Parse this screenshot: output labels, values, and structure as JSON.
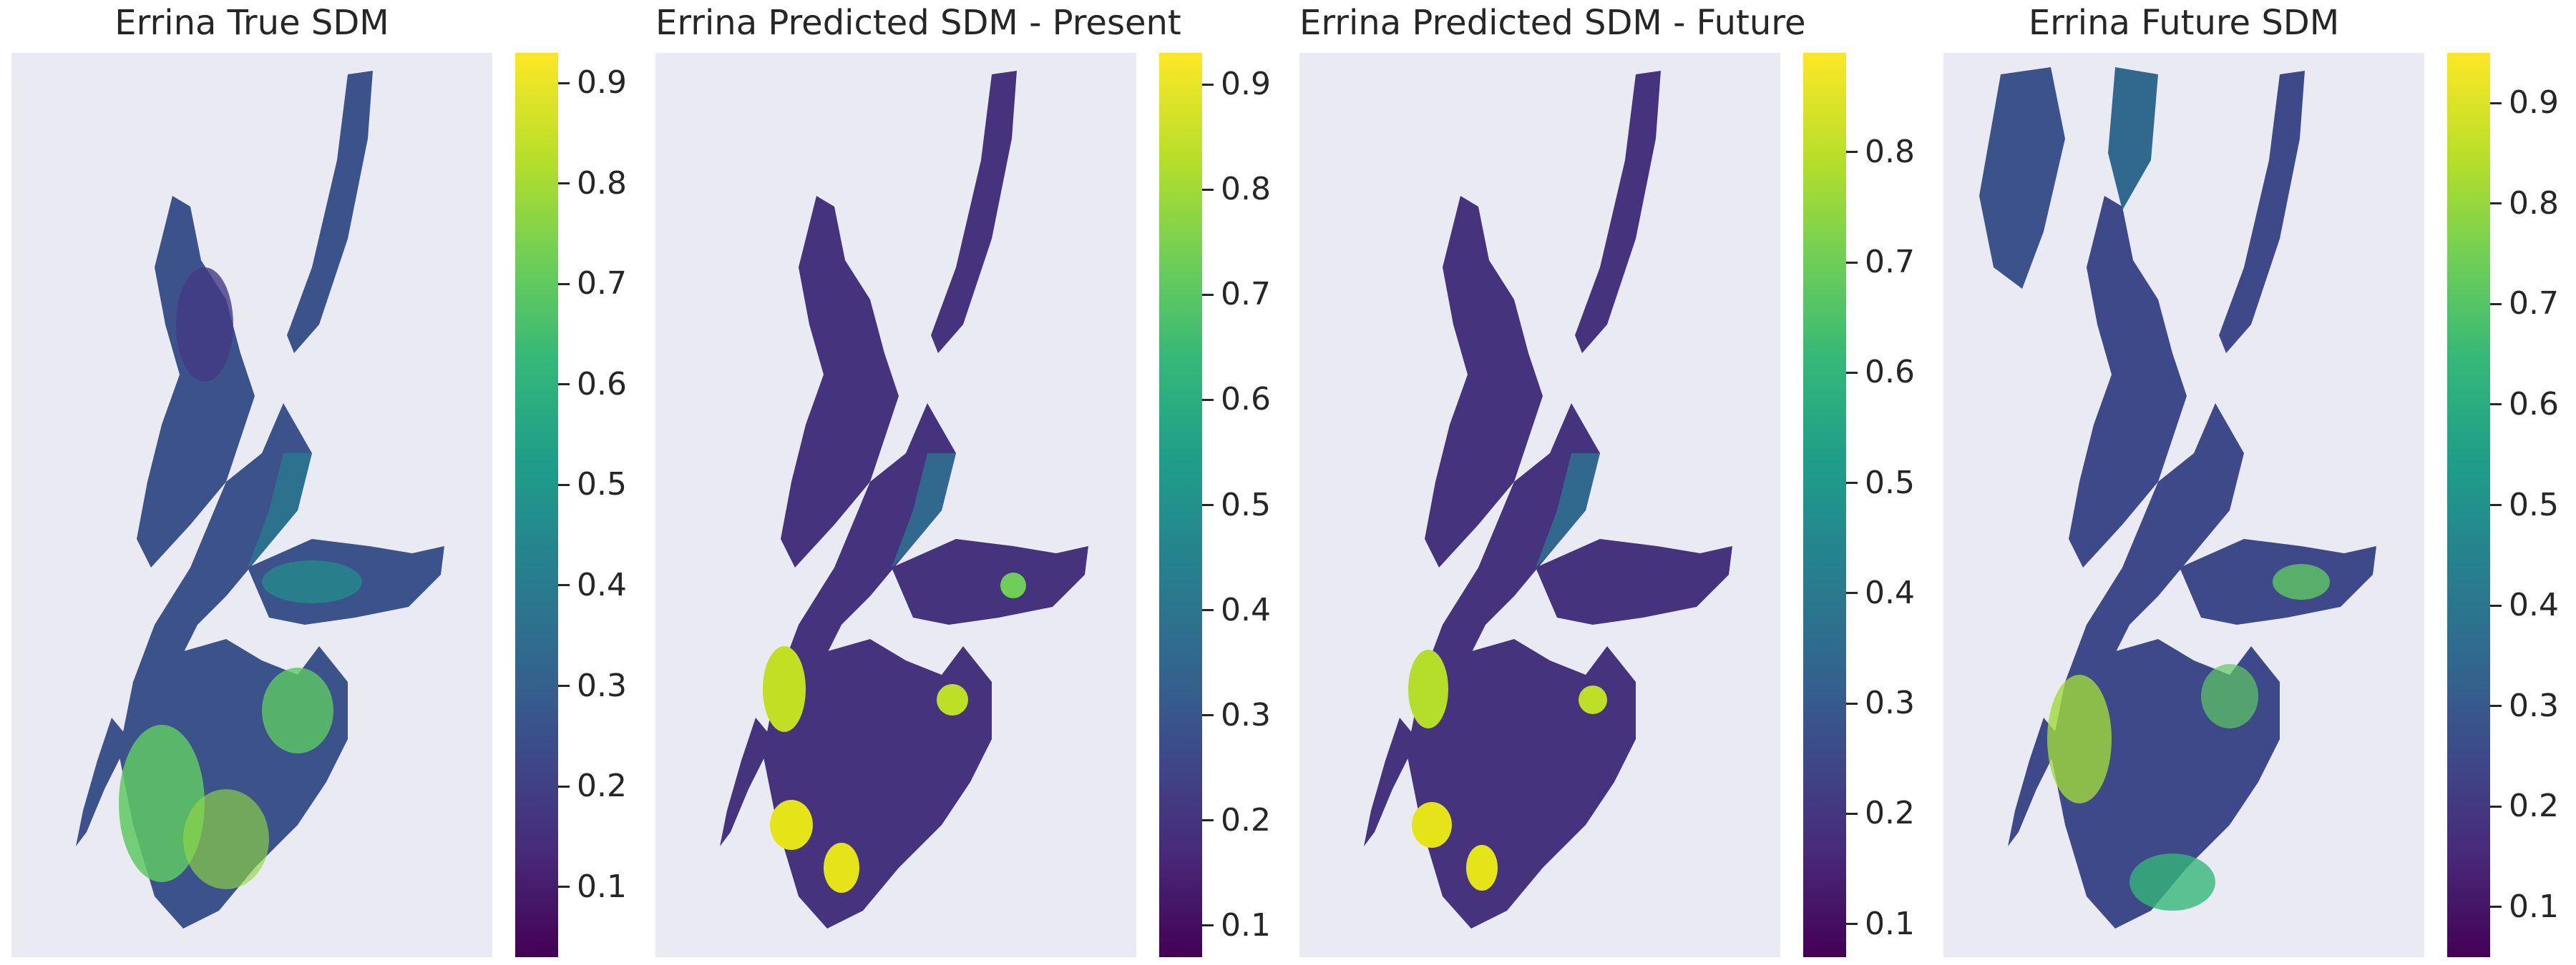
{
  "colormap": [
    "#440154",
    "#482878",
    "#3e4989",
    "#31688e",
    "#26828e",
    "#1f9e89",
    "#35b779",
    "#6ece58",
    "#b5de2b",
    "#fde725"
  ],
  "panels": [
    {
      "title": "Errina True SDM",
      "vmin": 0.03,
      "vmax": 0.93,
      "ticks": [
        "0.1",
        "0.2",
        "0.3",
        "0.4",
        "0.5",
        "0.6",
        "0.7",
        "0.8",
        "0.9"
      ]
    },
    {
      "title": "Errina Predicted SDM - Present",
      "vmin": 0.07,
      "vmax": 0.93,
      "ticks": [
        "0.1",
        "0.2",
        "0.3",
        "0.4",
        "0.5",
        "0.6",
        "0.7",
        "0.8",
        "0.9"
      ]
    },
    {
      "title": "Errina Predicted SDM - Future",
      "vmin": 0.07,
      "vmax": 0.89,
      "ticks": [
        "0.1",
        "0.2",
        "0.3",
        "0.4",
        "0.5",
        "0.6",
        "0.7",
        "0.8"
      ]
    },
    {
      "title": "Errina Future SDM",
      "vmin": 0.05,
      "vmax": 0.95,
      "ticks": [
        "0.1",
        "0.2",
        "0.3",
        "0.4",
        "0.5",
        "0.6",
        "0.7",
        "0.8",
        "0.9"
      ]
    }
  ],
  "chart_data": [
    {
      "type": "heatmap",
      "title": "Errina True SDM",
      "xlabel": "",
      "ylabel": "",
      "colorbar_range": [
        0.03,
        0.93
      ],
      "colorbar_ticks": [
        0.1,
        0.2,
        0.3,
        0.4,
        0.5,
        0.6,
        0.7,
        0.8,
        0.9
      ],
      "colormap": "viridis",
      "grid": false
    },
    {
      "type": "heatmap",
      "title": "Errina Predicted SDM - Present",
      "xlabel": "",
      "ylabel": "",
      "colorbar_range": [
        0.07,
        0.93
      ],
      "colorbar_ticks": [
        0.1,
        0.2,
        0.3,
        0.4,
        0.5,
        0.6,
        0.7,
        0.8,
        0.9
      ],
      "colormap": "viridis",
      "grid": false
    },
    {
      "type": "heatmap",
      "title": "Errina Predicted SDM - Future",
      "xlabel": "",
      "ylabel": "",
      "colorbar_range": [
        0.07,
        0.89
      ],
      "colorbar_ticks": [
        0.1,
        0.2,
        0.3,
        0.4,
        0.5,
        0.6,
        0.7,
        0.8
      ],
      "colormap": "viridis",
      "grid": false
    },
    {
      "type": "heatmap",
      "title": "Errina Future SDM",
      "xlabel": "",
      "ylabel": "",
      "colorbar_range": [
        0.05,
        0.95
      ],
      "colorbar_ticks": [
        0.1,
        0.2,
        0.3,
        0.4,
        0.5,
        0.6,
        0.7,
        0.8,
        0.9
      ],
      "colormap": "viridis",
      "grid": false
    }
  ]
}
